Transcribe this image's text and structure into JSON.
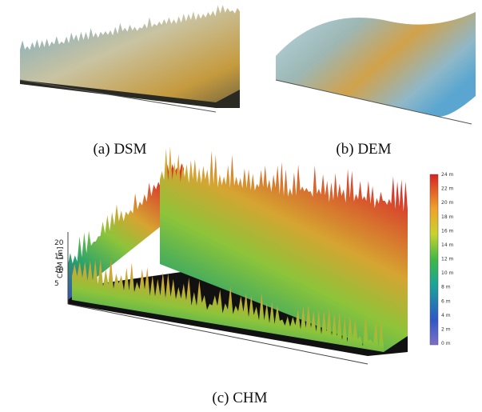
{
  "captions": [
    "(a) DSM",
    "(b) DEM",
    "(c) CHM"
  ],
  "chm_axis": {
    "label": "CHM [m]",
    "ticks": [
      "20",
      "15",
      "10",
      "5"
    ]
  },
  "colorbar": {
    "labels": [
      "24 m",
      "22 m",
      "20 m",
      "18 m",
      "16 m",
      "14 m",
      "12 m",
      "10 m",
      "8 m",
      "6 m",
      "4 m",
      "2 m",
      "0 m"
    ]
  }
}
